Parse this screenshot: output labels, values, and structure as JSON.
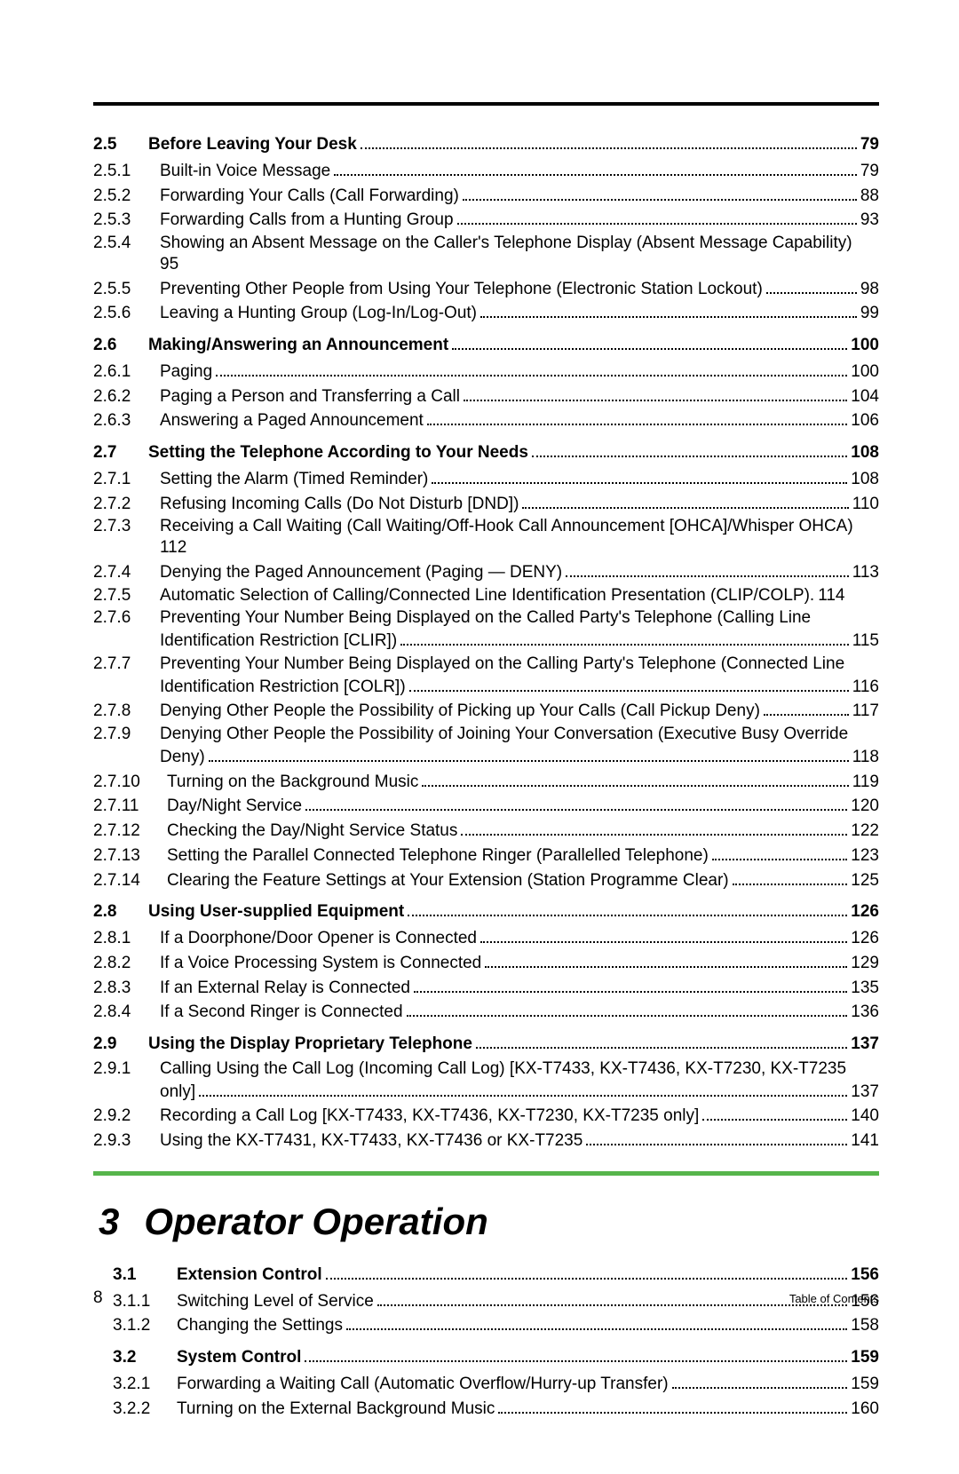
{
  "sections": [
    {
      "num": "2.5",
      "title": "Before Leaving Your Desk",
      "page": "79",
      "heading": true,
      "first": true
    },
    {
      "num": "2.5.1",
      "title": "Built-in Voice Message",
      "page": "79"
    },
    {
      "num": "2.5.2",
      "title": "Forwarding Your Calls (Call Forwarding)",
      "page": "88"
    },
    {
      "num": "2.5.3",
      "title": "Forwarding Calls from a Hunting Group",
      "page": "93"
    },
    {
      "num": "2.5.4",
      "title": "Showing an Absent Message on the Caller's Telephone Display (Absent Message Capability)",
      "cont": "95",
      "nowrap_page": true
    },
    {
      "num": "2.5.5",
      "title": "Preventing Other People from Using Your Telephone (Electronic Station Lockout)",
      "page": "98"
    },
    {
      "num": "2.5.6",
      "title": "Leaving a Hunting Group (Log-In/Log-Out)",
      "page": "99"
    },
    {
      "num": "2.6",
      "title": "Making/Answering an Announcement",
      "page": "100",
      "heading": true
    },
    {
      "num": "2.6.1",
      "title": "Paging",
      "page": "100"
    },
    {
      "num": "2.6.2",
      "title": "Paging a Person and Transferring a Call",
      "page": "104"
    },
    {
      "num": "2.6.3",
      "title": "Answering a Paged Announcement",
      "page": "106"
    },
    {
      "num": "2.7",
      "title": "Setting the Telephone According to Your Needs",
      "page": "108",
      "heading": true
    },
    {
      "num": "2.7.1",
      "title": "Setting the Alarm (Timed Reminder)",
      "page": "108"
    },
    {
      "num": "2.7.2",
      "title": "Refusing Incoming Calls (Do Not Disturb [DND])",
      "page": "110"
    },
    {
      "num": "2.7.3",
      "title": "Receiving a Call Waiting (Call Waiting/Off-Hook Call Announcement [OHCA]/Whisper OHCA)",
      "cont": "112",
      "nowrap_page": true
    },
    {
      "num": "2.7.4",
      "title": "Denying the Paged Announcement (Paging — DENY)",
      "page": "113"
    },
    {
      "num": "2.7.5",
      "title": "Automatic Selection of Calling/Connected Line Identification Presentation (CLIP/COLP).",
      "page": "114",
      "nodots": true
    },
    {
      "num": "2.7.6",
      "title": "Preventing Your Number Being Displayed on the Called Party's Telephone (Calling Line",
      "cont_dotted": "Identification Restriction [CLIR])",
      "page": "115"
    },
    {
      "num": "2.7.7",
      "title": "Preventing Your Number Being Displayed on the Calling Party's Telephone (Connected Line",
      "cont_dotted": "Identification Restriction [COLR])",
      "page": "116"
    },
    {
      "num": "2.7.8",
      "title": "Denying Other People the Possibility of Picking up Your Calls (Call Pickup Deny)",
      "page": "117"
    },
    {
      "num": "2.7.9",
      "title": "Denying Other People the Possibility of Joining Your Conversation (Executive Busy Override",
      "cont_dotted": "Deny)",
      "page": "118"
    },
    {
      "num": "2.7.10",
      "title": "Turning on the Background Music",
      "page": "119",
      "sub": true
    },
    {
      "num": "2.7.11",
      "title": "Day/Night Service",
      "page": "120",
      "sub": true
    },
    {
      "num": "2.7.12",
      "title": "Checking the Day/Night Service Status",
      "page": "122",
      "sub": true
    },
    {
      "num": "2.7.13",
      "title": "Setting the Parallel Connected Telephone Ringer (Parallelled Telephone)",
      "page": "123",
      "sub": true
    },
    {
      "num": "2.7.14",
      "title": "Clearing the Feature Settings at Your Extension (Station Programme Clear)",
      "page": "125",
      "sub": true
    },
    {
      "num": "2.8",
      "title": "Using User-supplied Equipment",
      "page": "126",
      "heading": true
    },
    {
      "num": "2.8.1",
      "title": "If a Doorphone/Door Opener is Connected",
      "page": "126"
    },
    {
      "num": "2.8.2",
      "title": "If a Voice Processing System is Connected",
      "page": "129"
    },
    {
      "num": "2.8.3",
      "title": "If an External Relay is Connected",
      "page": "135"
    },
    {
      "num": "2.8.4",
      "title": "If a Second Ringer is Connected",
      "page": "136"
    },
    {
      "num": "2.9",
      "title": "Using the Display Proprietary Telephone",
      "page": "137",
      "heading": true
    },
    {
      "num": "2.9.1",
      "title": "Calling Using the Call Log (Incoming Call Log) [KX-T7433, KX-T7436, KX-T7230, KX-T7235",
      "cont_dotted": "only]",
      "page": "137"
    },
    {
      "num": "2.9.2",
      "title": "Recording a Call Log [KX-T7433, KX-T7436, KX-T7230, KX-T7235 only]",
      "page": "140"
    },
    {
      "num": "2.9.3",
      "title": "Using the KX-T7431, KX-T7433, KX-T7436 or KX-T7235",
      "page": "141"
    }
  ],
  "chapter_num": "3",
  "chapter_title": "Operator Operation",
  "sections2": [
    {
      "num": "3.1",
      "title": "Extension Control",
      "page": "156",
      "heading": true,
      "first": true
    },
    {
      "num": "3.1.1",
      "title": "Switching Level of Service",
      "page": "156"
    },
    {
      "num": "3.1.2",
      "title": "Changing the Settings",
      "page": "158"
    },
    {
      "num": "3.2",
      "title": "System Control",
      "page": "159",
      "heading": true
    },
    {
      "num": "3.2.1",
      "title": "Forwarding a Waiting Call (Automatic Overflow/Hurry-up Transfer)",
      "page": "159"
    },
    {
      "num": "3.2.2",
      "title": "Turning on the External Background Music",
      "page": "160"
    }
  ],
  "footer_page": "8",
  "footer_label": "Table of Contents"
}
